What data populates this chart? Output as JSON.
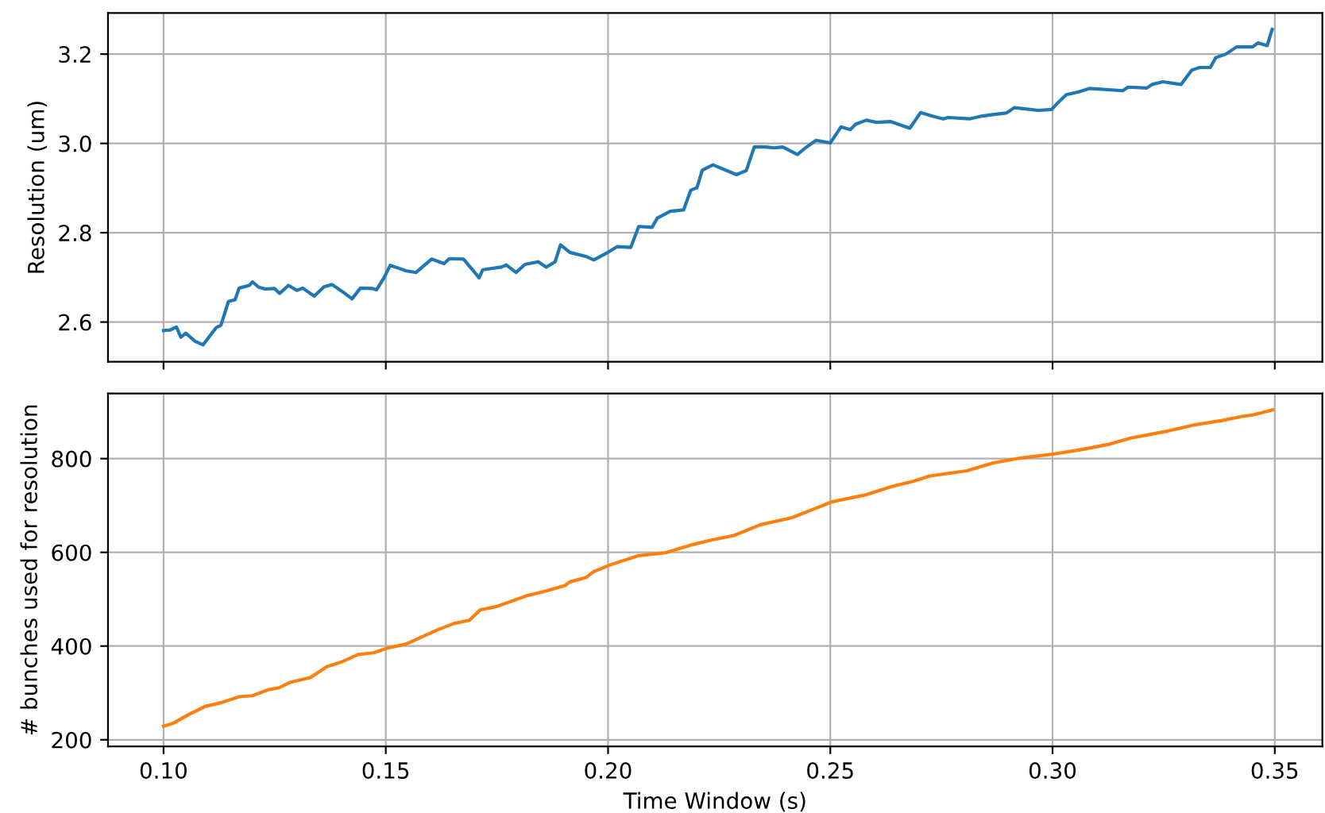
{
  "chart_data": [
    {
      "type": "line",
      "ylabel": "Resolution (um)",
      "xlim": [
        0.0875,
        0.3607
      ],
      "xticks": [
        {
          "value": 0.1,
          "label": null
        },
        {
          "value": 0.15,
          "label": null
        },
        {
          "value": 0.2,
          "label": null
        },
        {
          "value": 0.25,
          "label": null
        },
        {
          "value": 0.3,
          "label": null
        },
        {
          "value": 0.35,
          "label": null
        }
      ],
      "ylim": [
        2.511,
        3.292
      ],
      "yticks": [
        2.6,
        2.8,
        {
          "value": 3.0,
          "label": "3.0"
        },
        3.2
      ],
      "grid": true,
      "tick_labels": "y",
      "series": [
        {
          "color": "#1f77b4",
          "x": [
            0.1,
            0.1014,
            0.1029,
            0.1039,
            0.105,
            0.1071,
            0.1089,
            0.1118,
            0.1129,
            0.1146,
            0.1161,
            0.117,
            0.1193,
            0.12,
            0.1214,
            0.1229,
            0.125,
            0.1261,
            0.1281,
            0.13,
            0.1313,
            0.1339,
            0.1361,
            0.1379,
            0.1404,
            0.1424,
            0.1443,
            0.1471,
            0.1479,
            0.1496,
            0.151,
            0.1545,
            0.1568,
            0.1603,
            0.1631,
            0.1643,
            0.1675,
            0.171,
            0.1718,
            0.176,
            0.1771,
            0.1793,
            0.1813,
            0.1843,
            0.1861,
            0.1881,
            0.1893,
            0.1914,
            0.195,
            0.1968,
            0.1998,
            0.2021,
            0.2051,
            0.2069,
            0.2099,
            0.2111,
            0.214,
            0.217,
            0.2186,
            0.22,
            0.2212,
            0.2236,
            0.2289,
            0.2311,
            0.2329,
            0.2355,
            0.2373,
            0.2393,
            0.2426,
            0.2444,
            0.2468,
            0.25,
            0.2524,
            0.2545,
            0.2557,
            0.2581,
            0.2605,
            0.2635,
            0.2679,
            0.2703,
            0.273,
            0.2754,
            0.2765,
            0.2813,
            0.284,
            0.2861,
            0.2896,
            0.2914,
            0.2968,
            0.2998,
            0.301,
            0.3031,
            0.3057,
            0.3083,
            0.3158,
            0.317,
            0.3212,
            0.3224,
            0.3248,
            0.3289,
            0.3313,
            0.3331,
            0.3355,
            0.3367,
            0.339,
            0.3414,
            0.345,
            0.3462,
            0.3483,
            0.3494
          ],
          "values": [
            2.581,
            2.582,
            2.589,
            2.566,
            2.575,
            2.557,
            2.549,
            2.587,
            2.593,
            2.646,
            2.65,
            2.676,
            2.682,
            2.69,
            2.678,
            2.674,
            2.675,
            2.664,
            2.682,
            2.671,
            2.676,
            2.658,
            2.679,
            2.684,
            2.667,
            2.652,
            2.676,
            2.675,
            2.672,
            2.699,
            2.727,
            2.715,
            2.711,
            2.741,
            2.731,
            2.742,
            2.741,
            2.699,
            2.717,
            2.723,
            2.728,
            2.711,
            2.729,
            2.735,
            2.723,
            2.735,
            2.773,
            2.756,
            2.747,
            2.739,
            2.755,
            2.769,
            2.767,
            2.814,
            2.812,
            2.833,
            2.848,
            2.851,
            2.895,
            2.901,
            2.94,
            2.952,
            2.93,
            2.939,
            2.992,
            2.992,
            2.99,
            2.992,
            2.975,
            2.99,
            3.007,
            3.001,
            3.037,
            3.031,
            3.043,
            3.052,
            3.047,
            3.049,
            3.034,
            3.069,
            3.061,
            3.055,
            3.058,
            3.055,
            3.061,
            3.064,
            3.068,
            3.08,
            3.074,
            3.076,
            3.089,
            3.109,
            3.115,
            3.123,
            3.118,
            3.126,
            3.124,
            3.132,
            3.138,
            3.132,
            3.164,
            3.17,
            3.17,
            3.192,
            3.2,
            3.216,
            3.216,
            3.225,
            3.219,
            3.255
          ]
        }
      ]
    },
    {
      "type": "line",
      "xlabel": "Time Window (s)",
      "ylabel": "# bunches used for resolution",
      "xlim": [
        0.0875,
        0.3607
      ],
      "xticks": [
        {
          "value": 0.1,
          "label": "0.10"
        },
        {
          "value": 0.15,
          "label": "0.15"
        },
        {
          "value": 0.2,
          "label": "0.20"
        },
        {
          "value": 0.25,
          "label": "0.25"
        },
        {
          "value": 0.3,
          "label": "0.30"
        },
        {
          "value": 0.35,
          "label": "0.35"
        }
      ],
      "ylim": [
        186,
        939
      ],
      "yticks": [
        200,
        400,
        600,
        800
      ],
      "grid": true,
      "series": [
        {
          "color": "#ff7f0e",
          "x": [
            0.1,
            0.1021,
            0.1057,
            0.1093,
            0.1129,
            0.117,
            0.12,
            0.1236,
            0.126,
            0.1283,
            0.1331,
            0.1367,
            0.1403,
            0.1438,
            0.1474,
            0.1504,
            0.1545,
            0.1617,
            0.1653,
            0.1688,
            0.1712,
            0.1748,
            0.1819,
            0.1855,
            0.1903,
            0.1914,
            0.195,
            0.1968,
            0.2004,
            0.2069,
            0.2129,
            0.2188,
            0.2236,
            0.2283,
            0.2343,
            0.2414,
            0.2462,
            0.2504,
            0.2581,
            0.264,
            0.2688,
            0.2724,
            0.2807,
            0.2867,
            0.2926,
            0.3004,
            0.3069,
            0.3129,
            0.3176,
            0.326,
            0.3319,
            0.3379,
            0.3426,
            0.345,
            0.3495
          ],
          "values": [
            229,
            235,
            254,
            271,
            279,
            292,
            294,
            307,
            311,
            322,
            333,
            356,
            367,
            382,
            386,
            396,
            404,
            435,
            448,
            455,
            477,
            484,
            508,
            516,
            529,
            537,
            546,
            559,
            573,
            593,
            599,
            616,
            627,
            636,
            659,
            674,
            692,
            708,
            723,
            741,
            752,
            763,
            774,
            791,
            801,
            810,
            820,
            831,
            844,
            859,
            872,
            881,
            890,
            893,
            904
          ]
        }
      ]
    }
  ]
}
